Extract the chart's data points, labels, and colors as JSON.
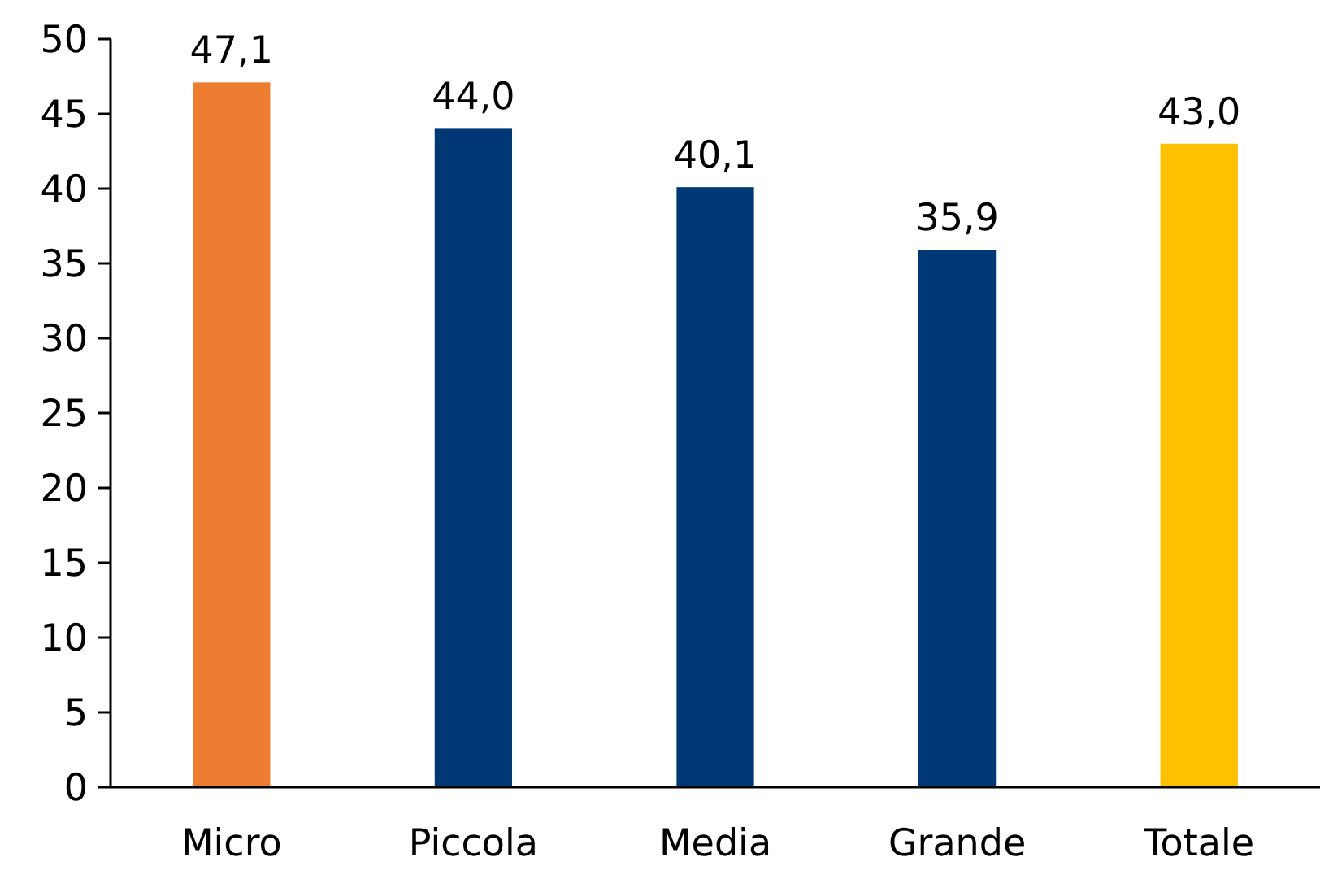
{
  "chart_data": {
    "type": "bar",
    "categories": [
      "Micro",
      "Piccola",
      "Media",
      "Grande",
      "Totale"
    ],
    "values": [
      47.1,
      44.0,
      40.1,
      35.9,
      43.0
    ],
    "colors": [
      "#ed7d31",
      "#003876",
      "#003876",
      "#003876",
      "#ffc000"
    ],
    "value_labels": [
      "47,1",
      "44,0",
      "40,1",
      "35,9",
      "43,0"
    ],
    "ylim": [
      0,
      50
    ],
    "yticks": [
      0,
      5,
      10,
      15,
      20,
      25,
      30,
      35,
      40,
      45,
      50
    ],
    "grid": false
  }
}
